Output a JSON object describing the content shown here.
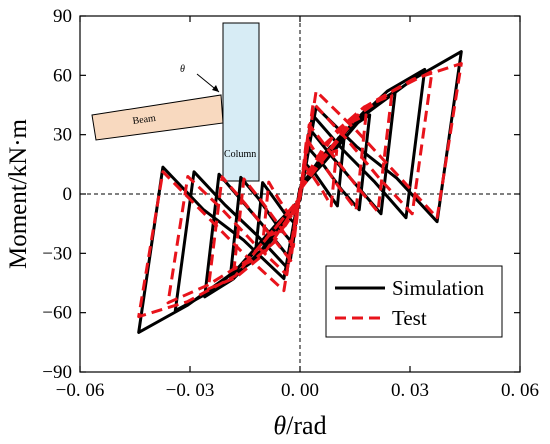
{
  "chart_data": {
    "type": "line",
    "xlabel_symbol": "θ",
    "xlabel_unit": "/rad",
    "ylabel": "Moment/kN·m",
    "xlim": [
      -0.06,
      0.06
    ],
    "ylim": [
      -90,
      90
    ],
    "x_ticks": [
      -0.06,
      -0.03,
      0.0,
      0.03,
      0.06
    ],
    "x_tick_labels": [
      "−0. 06",
      "−0. 03",
      "0. 00",
      "0. 03",
      "0. 06"
    ],
    "y_ticks": [
      -90,
      -60,
      -30,
      0,
      30,
      60,
      90
    ],
    "y_tick_labels": [
      "−90",
      "−60",
      "−30",
      "0",
      "30",
      "60",
      "90"
    ],
    "reference_lines": {
      "x": 0,
      "y": 0,
      "style": "dashed"
    },
    "legend": {
      "placement": "bottom-right",
      "entries": [
        "Simulation",
        "Test"
      ]
    },
    "series": [
      {
        "name": "Simulation",
        "color": "#000000",
        "style": "solid",
        "loops": [
          {
            "amp": 0.012,
            "peak": 28,
            "neg_peak": -27,
            "load": [
              3,
              8,
              16,
              24,
              28
            ],
            "unload": [
              -6,
              2,
              10,
              16
            ]
          },
          {
            "amp": 0.019,
            "peak": 40,
            "neg_peak": -42,
            "load": [
              3,
              10,
              22,
              33,
              40
            ],
            "unload": [
              -8,
              2,
              14,
              24
            ]
          },
          {
            "amp": 0.026,
            "peak": 52,
            "neg_peak": -52,
            "load": [
              3,
              12,
              28,
              43,
              52
            ],
            "unload": [
              -10,
              4,
              18,
              33
            ]
          },
          {
            "amp": 0.034,
            "peak": 63,
            "neg_peak": -59,
            "load": [
              3,
              14,
              34,
              52,
              63
            ],
            "unload": [
              -12,
              6,
              22,
              40
            ]
          },
          {
            "amp": 0.044,
            "peak": 72,
            "neg_peak": -70,
            "load": [
              3,
              16,
              40,
              58,
              72
            ],
            "unload": [
              -14,
              8,
              24,
              44
            ]
          }
        ]
      },
      {
        "name": "Test",
        "color": "#e8131b",
        "style": "dashed",
        "loops": [
          {
            "amp": 0.01,
            "peak": 22,
            "neg_peak": -22,
            "load": [
              2,
              9,
              16,
              20,
              22
            ],
            "unload": [
              -6,
              2,
              9,
              15
            ]
          },
          {
            "amp": 0.018,
            "peak": 40,
            "neg_peak": -38,
            "load": [
              2,
              12,
              26,
              35,
              40
            ],
            "unload": [
              -8,
              3,
              15,
              28
            ]
          },
          {
            "amp": 0.025,
            "peak": 50,
            "neg_peak": -48,
            "load": [
              2,
              14,
              32,
              44,
              50
            ],
            "unload": [
              -9,
              5,
              20,
              35
            ]
          },
          {
            "amp": 0.036,
            "peak": 62,
            "neg_peak": -55,
            "load": [
              2,
              16,
              38,
              52,
              62
            ],
            "unload": [
              -10,
              8,
              28,
              46
            ]
          },
          {
            "amp": 0.044,
            "peak": 66,
            "neg_peak": -62,
            "load": [
              2,
              18,
              44,
              58,
              66
            ],
            "unload": [
              -12,
              10,
              32,
              52
            ]
          }
        ]
      }
    ],
    "inset": {
      "beam_label": "Beam",
      "column_label": "Column",
      "angle_label": "θ",
      "beam_color": "#f8d9bf",
      "column_color": "#d7ecf5"
    }
  }
}
